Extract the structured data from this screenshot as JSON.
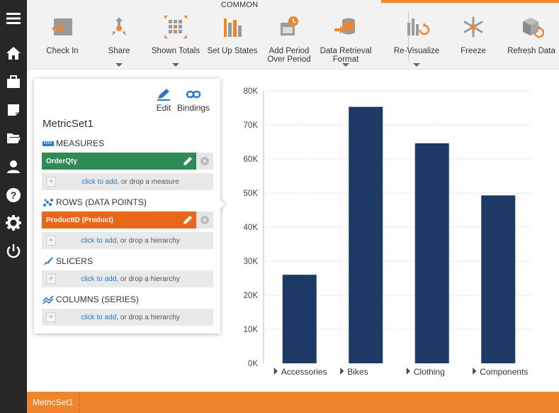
{
  "ribbon": {
    "group_label": "COMMON",
    "buttons": [
      {
        "label": "Check In",
        "icon": "check-in-icon",
        "has_caret": false
      },
      {
        "label": "Share",
        "icon": "share-icon",
        "has_caret": true
      },
      {
        "label": "Shown Totals",
        "icon": "shown-totals-icon",
        "has_caret": true
      },
      {
        "label": "Set Up States",
        "icon": "set-up-states-icon",
        "has_caret": false
      },
      {
        "label": "Add Period\nOver Period",
        "icon": "add-period-icon",
        "has_caret": false
      },
      {
        "label": "Data Retrieval\nFormat",
        "icon": "data-retrieval-icon",
        "has_caret": true
      },
      {
        "label": "Re-Visualize",
        "icon": "re-visualize-icon",
        "has_caret": true
      },
      {
        "label": "Freeze",
        "icon": "freeze-icon",
        "has_caret": false
      },
      {
        "label": "Refresh Data",
        "icon": "refresh-data-icon",
        "has_caret": false
      }
    ]
  },
  "sidebar": {
    "icons": [
      "menu-icon",
      "home-icon",
      "briefcase-icon",
      "notes-icon",
      "folder-open-icon",
      "user-icon",
      "help-icon",
      "settings-icon",
      "power-icon"
    ]
  },
  "panel": {
    "edit_label": "Edit",
    "bindings_label": "Bindings",
    "title": "MetricSet1",
    "measures": {
      "heading": "MEASURES",
      "pill": "OrderQty",
      "drop_link": "click to add",
      "drop_rest": ", or drop a measure"
    },
    "rows": {
      "heading": "ROWS (DATA POINTS)",
      "pill": "ProductID (Product)",
      "drop_link": "click to add",
      "drop_rest": ", or drop a hierarchy"
    },
    "slicers": {
      "heading": "SLICERS",
      "drop_link": "click to add",
      "drop_rest": ", or drop a hierarchy"
    },
    "columns": {
      "heading": "COLUMNS (SERIES)",
      "drop_link": "click to add",
      "drop_rest": ", or drop a hierarchy"
    }
  },
  "colors": {
    "measure_pill": "#2e8b57",
    "rows_pill": "#e8661a",
    "bar": "#1d3a66",
    "accent": "#f0852d"
  },
  "chart_data": {
    "type": "bar",
    "categories": [
      "Accessories",
      "Bikes",
      "Clothing",
      "Components"
    ],
    "values": [
      26000,
      75300,
      64600,
      49300
    ],
    "ylim": [
      0,
      80000
    ],
    "yticks": [
      "0K",
      "10K",
      "20K",
      "30K",
      "40K",
      "50K",
      "60K",
      "70K",
      "80K"
    ],
    "grid": true,
    "xlabel": "",
    "ylabel": ""
  },
  "bottombar": {
    "tab_label": "MetricSet1"
  }
}
